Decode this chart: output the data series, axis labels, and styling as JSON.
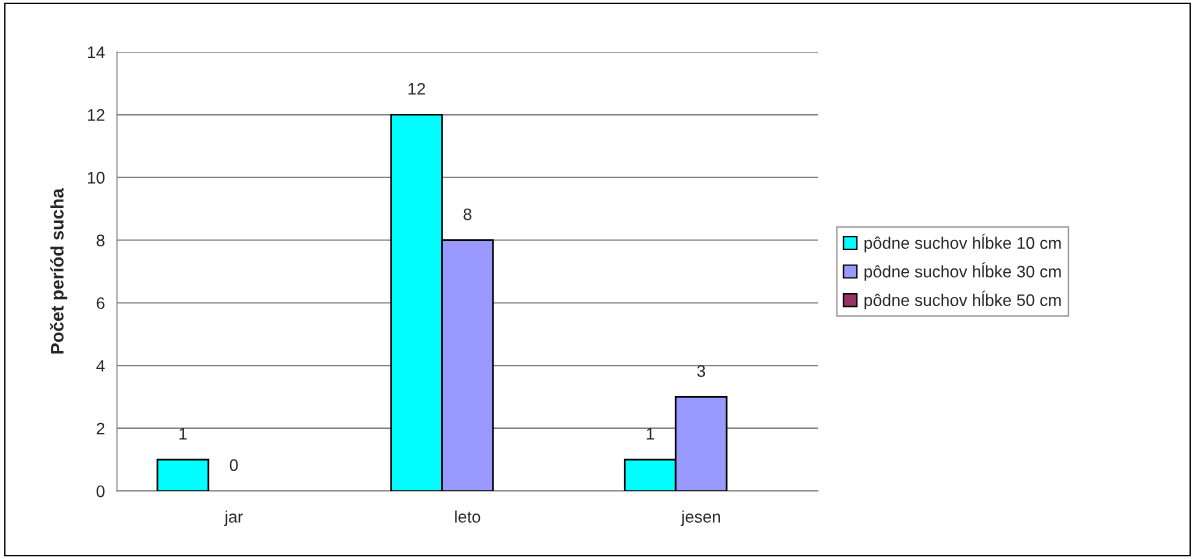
{
  "chart_data": {
    "type": "bar",
    "ylabel": "Počet períód sucha",
    "categories": [
      "jar",
      "leto",
      "jesen"
    ],
    "series": [
      {
        "name": "pôdne suchov hĺbke 10 cm",
        "color": "#00ffff",
        "values": [
          1,
          12,
          1
        ],
        "value_labels": [
          "1",
          "12",
          "1"
        ]
      },
      {
        "name": "pôdne suchov hĺbke 30 cm",
        "color": "#9999ff",
        "values": [
          0,
          8,
          3
        ],
        "value_labels": [
          "0",
          "8",
          "3"
        ]
      },
      {
        "name": "pôdne suchov hĺbke 50 cm",
        "color": "#993366",
        "values": [
          null,
          null,
          null
        ]
      }
    ],
    "ylim": [
      0,
      14
    ],
    "yticks": [
      0,
      2,
      4,
      6,
      8,
      10,
      12,
      14
    ],
    "grid": "y",
    "legend": "right"
  }
}
